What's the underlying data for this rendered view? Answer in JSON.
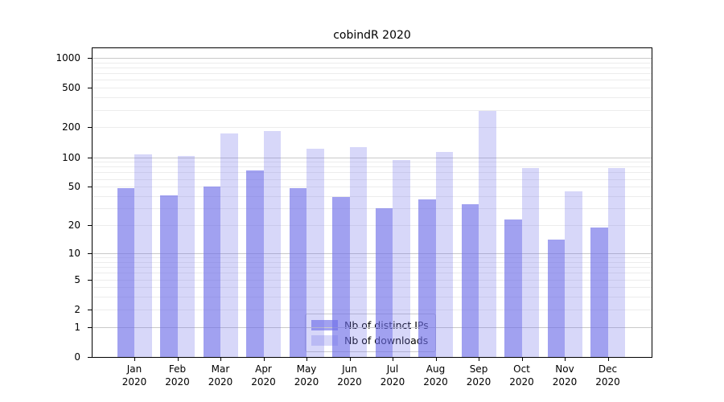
{
  "title": "cobindR 2020",
  "chart_data": {
    "type": "bar",
    "title": "cobindR 2020",
    "yscale": "log1p",
    "categories": [
      "Jan 2020",
      "Feb 2020",
      "Mar 2020",
      "Apr 2020",
      "May 2020",
      "Jun 2020",
      "Jul 2020",
      "Aug 2020",
      "Sep 2020",
      "Oct 2020",
      "Nov 2020",
      "Dec 2020"
    ],
    "series": [
      {
        "name": "Nb of distinct IPs",
        "color": "rgba(110,110,232,0.65)",
        "values": [
          48,
          41,
          50,
          73,
          48,
          39,
          30,
          37,
          33,
          23,
          14,
          19
        ]
      },
      {
        "name": "Nb of downloads",
        "color": "rgba(110,110,232,0.28)",
        "values": [
          106,
          102,
          175,
          185,
          121,
          126,
          94,
          112,
          295,
          77,
          45,
          77
        ]
      }
    ],
    "xlabel": "",
    "ylabel": "",
    "ylim": [
      0,
      1250
    ],
    "y_tick_values": [
      0,
      1,
      2,
      5,
      10,
      20,
      50,
      100,
      200,
      500,
      1000
    ],
    "grid": {
      "major_values": [
        1,
        10,
        100,
        1000
      ],
      "minor_values": [
        2,
        3,
        4,
        5,
        6,
        7,
        8,
        9,
        20,
        30,
        40,
        50,
        60,
        70,
        80,
        90,
        200,
        300,
        400,
        500,
        600,
        700,
        800,
        900
      ],
      "major_color": "#c9c9c9",
      "minor_color": "#ececec"
    },
    "legend_position": "lower-center",
    "accent_color": "#6e6ee8",
    "spine_color": "#000000"
  }
}
